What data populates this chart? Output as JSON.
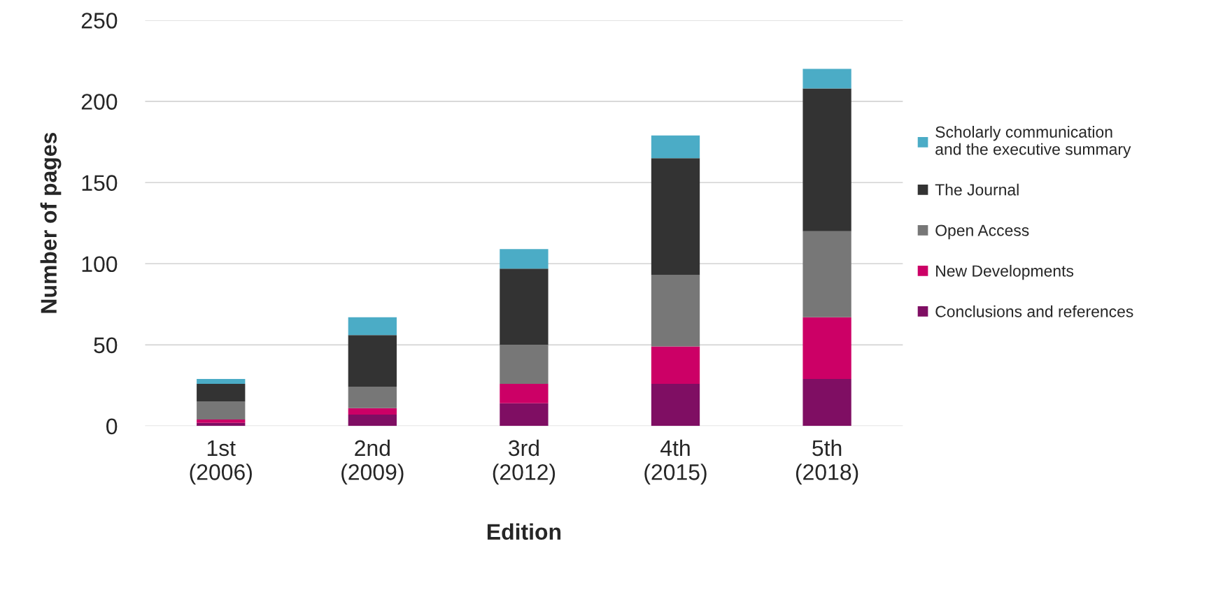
{
  "chart_data": {
    "type": "bar",
    "stacked": true,
    "xlabel": "Edition",
    "ylabel": "Number of pages",
    "categories": [
      "1st\n(2006)",
      "2nd\n(2009)",
      "3rd\n(2012)",
      "4th\n(2015)",
      "5th\n(2018)"
    ],
    "series": [
      {
        "name": "Conclusions and references",
        "color": "#7f0e63",
        "values": [
          2,
          7,
          14,
          26,
          29
        ]
      },
      {
        "name": "New Developments",
        "color": "#cc0066",
        "values": [
          2,
          4,
          12,
          23,
          38
        ]
      },
      {
        "name": "Open Access",
        "color": "#777777",
        "values": [
          11,
          13,
          24,
          44,
          53
        ]
      },
      {
        "name": "The Journal",
        "color": "#333333",
        "values": [
          11,
          32,
          47,
          72,
          88
        ]
      },
      {
        "name": "Scholarly communication\nand the executive summary",
        "color": "#4bacc6",
        "values": [
          3,
          11,
          12,
          14,
          12
        ]
      }
    ],
    "ylim": [
      0,
      250
    ],
    "yticks": [
      0,
      50,
      100,
      150,
      200,
      250
    ],
    "grid": "y",
    "legend": "right"
  }
}
